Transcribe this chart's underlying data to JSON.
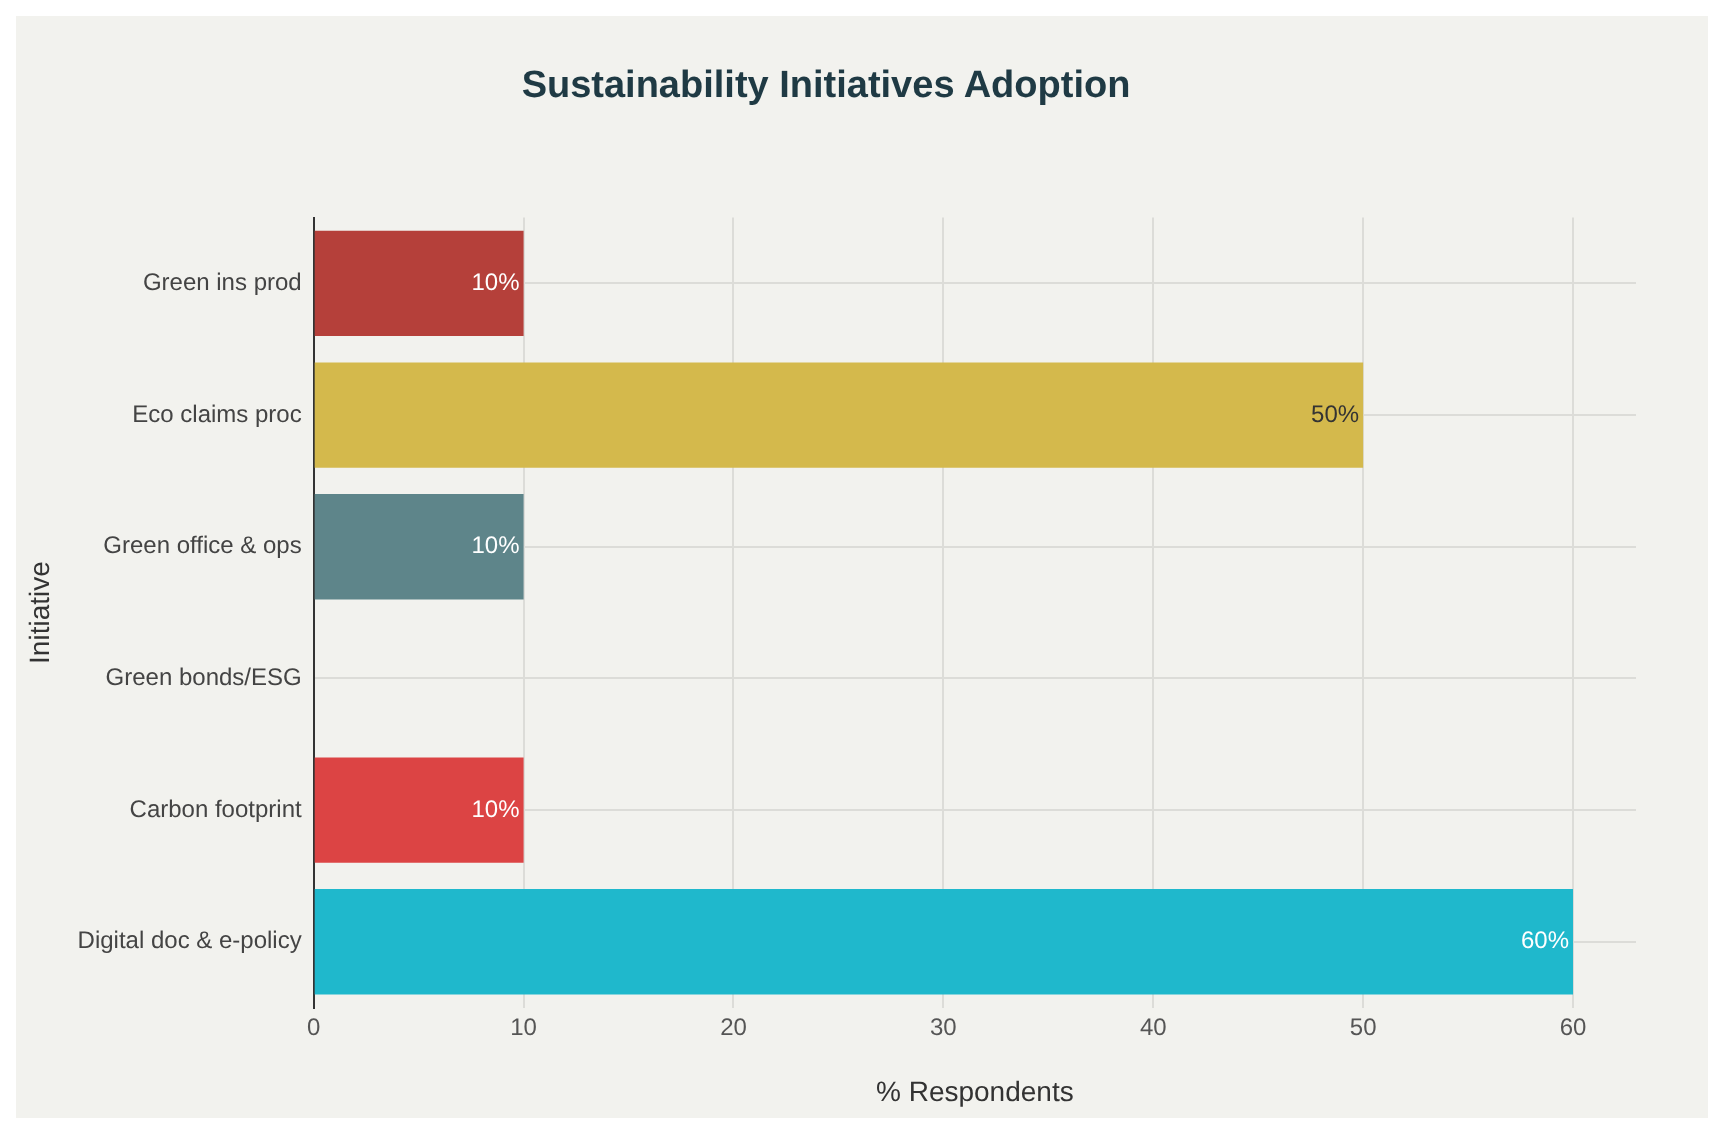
{
  "chart_data": {
    "type": "bar",
    "orientation": "horizontal",
    "title": "Sustainability Initiatives Adoption",
    "xlabel": "% Respondents",
    "ylabel": "Initiative",
    "categories": [
      "Green ins prod",
      "Eco claims proc",
      "Green office & ops",
      "Green bonds/ESG",
      "Carbon footprint",
      "Digital doc & e-policy"
    ],
    "values": [
      10,
      50,
      10,
      0,
      10,
      60
    ],
    "colors": [
      "#b5403a",
      "#d4b94c",
      "#5e858a",
      "#8a8a8a",
      "#dc4444",
      "#1fb8cc"
    ],
    "value_labels": [
      "10%",
      "50%",
      "10%",
      null,
      "10%",
      "60%"
    ],
    "xlim": [
      0,
      63
    ],
    "xticks": [
      0,
      10,
      20,
      30,
      40,
      50,
      60
    ],
    "grid": true,
    "legend": false
  }
}
